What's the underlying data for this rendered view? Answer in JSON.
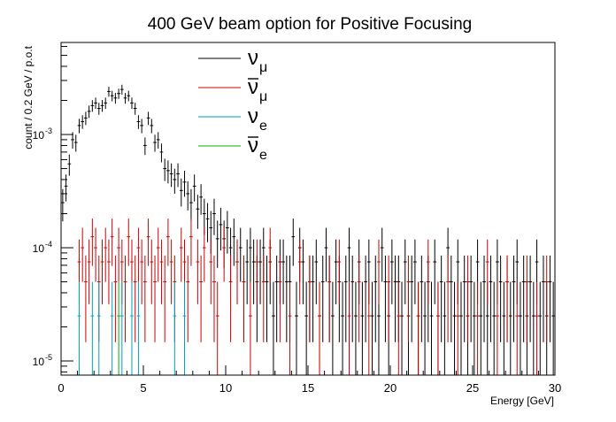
{
  "chart_data": {
    "type": "scatter",
    "title": "400 GeV beam option for Positive Focusing",
    "xlabel": "Energy [GeV]",
    "ylabel": "count / 0.2 GeV / p.o.t",
    "xlim": [
      0,
      30
    ],
    "ylim": [
      7.5e-06,
      0.0065
    ],
    "y_scale": "log",
    "grid": false,
    "legend_position": "top-center",
    "bin_width": 0.2,
    "x_ticks": [
      {
        "value": 0,
        "label": "0"
      },
      {
        "value": 5,
        "label": "5"
      },
      {
        "value": 10,
        "label": "10"
      },
      {
        "value": 15,
        "label": "15"
      },
      {
        "value": 20,
        "label": "20"
      },
      {
        "value": 25,
        "label": "25"
      },
      {
        "value": 30,
        "label": "30"
      }
    ],
    "y_ticks": [
      {
        "value": 1e-05,
        "mantissa": "10",
        "exponent": "-5"
      },
      {
        "value": 0.0001,
        "mantissa": "10",
        "exponent": "-4"
      },
      {
        "value": 0.001,
        "mantissa": "10",
        "exponent": "-3"
      }
    ],
    "series": [
      {
        "name": "ν_μ",
        "legend": {
          "symbol": "ν",
          "sub": "μ",
          "bar": false
        },
        "color": "#000000",
        "error_mode": "poisson",
        "x": [
          0.1,
          0.3,
          0.5,
          0.7,
          0.9,
          1.1,
          1.3,
          1.5,
          1.7,
          1.9,
          2.1,
          2.3,
          2.5,
          2.7,
          2.9,
          3.1,
          3.3,
          3.5,
          3.7,
          3.9,
          4.1,
          4.3,
          4.5,
          4.7,
          4.9,
          5.1,
          5.3,
          5.5,
          5.7,
          5.9,
          6.1,
          6.3,
          6.5,
          6.7,
          6.9,
          7.1,
          7.3,
          7.5,
          7.7,
          7.9,
          8.1,
          8.3,
          8.5,
          8.7,
          8.9,
          9.1,
          9.3,
          9.5,
          9.7,
          9.9,
          10.1,
          10.3,
          10.5,
          10.7,
          10.9,
          11.1,
          11.3,
          11.5,
          11.7,
          11.9,
          12.1,
          12.3,
          12.5,
          12.7,
          12.9,
          13.1,
          13.3,
          13.5,
          13.7,
          13.9,
          14.1,
          14.3,
          14.5,
          14.7,
          14.9,
          15.1,
          15.3,
          15.5,
          15.7,
          15.9,
          16.1,
          16.3,
          16.5,
          16.7,
          16.9,
          17.1,
          17.3,
          17.5,
          17.7,
          17.9,
          18.1,
          18.3,
          18.5,
          18.7,
          18.9,
          19.1,
          19.3,
          19.5,
          19.7,
          19.9,
          20.1,
          20.3,
          20.5,
          20.7,
          20.9,
          21.1,
          21.3,
          21.5,
          21.7,
          21.9,
          22.1,
          22.3,
          22.5,
          22.7,
          22.9,
          23.1,
          23.3,
          23.5,
          23.7,
          23.9,
          24.1,
          24.3,
          24.5,
          24.7,
          24.9,
          25.1,
          25.3,
          25.5,
          25.7,
          25.9,
          26.1,
          26.3,
          26.5,
          26.7,
          26.9,
          27.1,
          27.3,
          27.5,
          27.7,
          27.9,
          28.1,
          28.3,
          28.5,
          28.7,
          28.9,
          29.1,
          29.3,
          29.5,
          29.7,
          29.9
        ],
        "y": [
          0.00025,
          0.00035,
          0.00055,
          0.0009,
          0.00085,
          0.0012,
          0.0013,
          0.0014,
          0.0016,
          0.0018,
          0.0019,
          0.0017,
          0.0018,
          0.0019,
          0.0024,
          0.0022,
          0.0021,
          0.0023,
          0.0025,
          0.0021,
          0.0022,
          0.0019,
          0.0017,
          0.0013,
          0.0012,
          0.0008,
          0.0014,
          0.0012,
          0.00085,
          0.0009,
          0.0007,
          0.0005,
          0.00048,
          0.00045,
          0.0004,
          0.00045,
          0.00032,
          0.00038,
          0.0003,
          0.00025,
          0.00035,
          0.00022,
          0.00028,
          0.0002,
          0.00018,
          0.00015,
          0.0002,
          0.00012,
          0.00016,
          0.00012,
          0.00015,
          0.0001,
          0.000125,
          7.5e-05,
          0.0001,
          5e-05,
          7.5e-05,
          0.0001,
          7.5e-05,
          5e-05,
          7.5e-05,
          0.0001,
          5e-05,
          7.5e-05,
          2.5e-05,
          5e-05,
          7.5e-05,
          7.5e-05,
          5e-05,
          5e-05,
          0.000125,
          2.5e-05,
          0.0001,
          7.5e-05,
          2.5e-05,
          5e-05,
          5e-05,
          7.5e-05,
          2.5e-05,
          5e-05,
          0.0001,
          5e-05,
          2.5e-05,
          7.5e-05,
          5e-05,
          2.5e-05,
          5e-05,
          0.0001,
          5e-05,
          2.5e-05,
          7.5e-05,
          2.5e-05,
          5e-05,
          7.5e-05,
          2.5e-05,
          5e-05,
          2.5e-05,
          0.0001,
          5e-05,
          2.5e-05,
          7.5e-05,
          5e-05,
          5e-05,
          2.5e-05,
          7.5e-05,
          2.5e-05,
          5e-05,
          7.5e-05,
          2.5e-05,
          5e-05,
          2.5e-05,
          5e-05,
          2.5e-05,
          7.5e-05,
          2.5e-05,
          5e-05,
          2.5e-05,
          0.0001,
          5e-05,
          2.5e-05,
          7.5e-05,
          2.5e-05,
          5e-05,
          2.5e-05,
          5e-05,
          2.5e-05,
          7.5e-05,
          2.5e-05,
          5e-05,
          2.5e-05,
          5e-05,
          2.5e-05,
          7.5e-05,
          5e-05,
          2.5e-05,
          5e-05,
          2.5e-05,
          5e-05,
          7.5e-05,
          2.5e-05,
          5e-05,
          2.5e-05,
          5e-05,
          2.5e-05,
          7.5e-05,
          2.5e-05,
          5e-05,
          2.5e-05,
          5e-05,
          2.5e-05
        ]
      },
      {
        "name": "ν̄_μ",
        "legend": {
          "symbol": "ν",
          "sub": "μ",
          "bar": true
        },
        "color": "#d00000",
        "error_mode": "poisson",
        "x": [
          1.1,
          1.3,
          1.5,
          1.7,
          1.9,
          2.1,
          2.3,
          2.5,
          2.7,
          2.9,
          3.1,
          3.3,
          3.5,
          3.7,
          3.9,
          4.1,
          4.3,
          4.5,
          4.7,
          4.9,
          5.1,
          5.3,
          5.5,
          5.7,
          5.9,
          6.1,
          6.3,
          6.5,
          6.7,
          6.9,
          7.3,
          7.5,
          7.7,
          7.9,
          8.3,
          8.5,
          8.7,
          9.1,
          9.3,
          9.5,
          9.9,
          10.3,
          10.7,
          11.1,
          11.5,
          11.9,
          12.3,
          12.7,
          13.3,
          13.9,
          14.5,
          15.1,
          15.7,
          16.3,
          16.9,
          17.5,
          18.1,
          18.7,
          19.3,
          19.9,
          20.5,
          21.1,
          21.7,
          22.3,
          22.9,
          23.5,
          24.1,
          24.7,
          25.3,
          25.9,
          26.5,
          27.1,
          27.7,
          28.3,
          28.9,
          29.5
        ],
        "y": [
          7.5e-05,
          0.0001,
          5e-05,
          7.5e-05,
          0.000125,
          0.0001,
          5e-05,
          7.5e-05,
          0.0001,
          7.5e-05,
          0.000125,
          5e-05,
          0.0001,
          7.5e-05,
          5e-05,
          0.000125,
          7.5e-05,
          5e-05,
          0.0001,
          7.5e-05,
          5e-05,
          0.000125,
          7.5e-05,
          5e-05,
          0.0001,
          7.5e-05,
          5e-05,
          0.000125,
          7.5e-05,
          5e-05,
          0.0001,
          7.5e-05,
          5e-05,
          0.000125,
          7.5e-05,
          5e-05,
          0.0001,
          7.5e-05,
          5e-05,
          2.5e-05,
          0.0001,
          5e-05,
          7.5e-05,
          5e-05,
          2.5e-05,
          7.5e-05,
          5e-05,
          0.0001,
          5e-05,
          2.5e-05,
          7.5e-05,
          5e-05,
          2.5e-05,
          5e-05,
          7.5e-05,
          2.5e-05,
          5e-05,
          2.5e-05,
          7.5e-05,
          5e-05,
          2.5e-05,
          5e-05,
          2.5e-05,
          7.5e-05,
          2.5e-05,
          5e-05,
          2.5e-05,
          5e-05,
          2.5e-05,
          7.5e-05,
          2.5e-05,
          5e-05,
          2.5e-05,
          5e-05,
          2.5e-05,
          5e-05
        ]
      },
      {
        "name": "ν_e",
        "legend": {
          "symbol": "ν",
          "sub": "e",
          "bar": false
        },
        "color": "#00a0c8",
        "error_mode": "single_count",
        "x": [
          1.1,
          1.9,
          2.3,
          3.1,
          3.7,
          4.3,
          4.7,
          6.9,
          7.5
        ],
        "y": [
          2.5e-05,
          2.5e-05,
          2.5e-05,
          2.5e-05,
          2.5e-05,
          2.5e-05,
          2.5e-05,
          2.5e-05,
          2.5e-05
        ]
      },
      {
        "name": "ν̄_e",
        "legend": {
          "symbol": "ν",
          "sub": "e",
          "bar": true
        },
        "color": "#00b400",
        "error_mode": "single_count",
        "x": [
          3.5
        ],
        "y": [
          2.5e-05
        ]
      }
    ]
  }
}
